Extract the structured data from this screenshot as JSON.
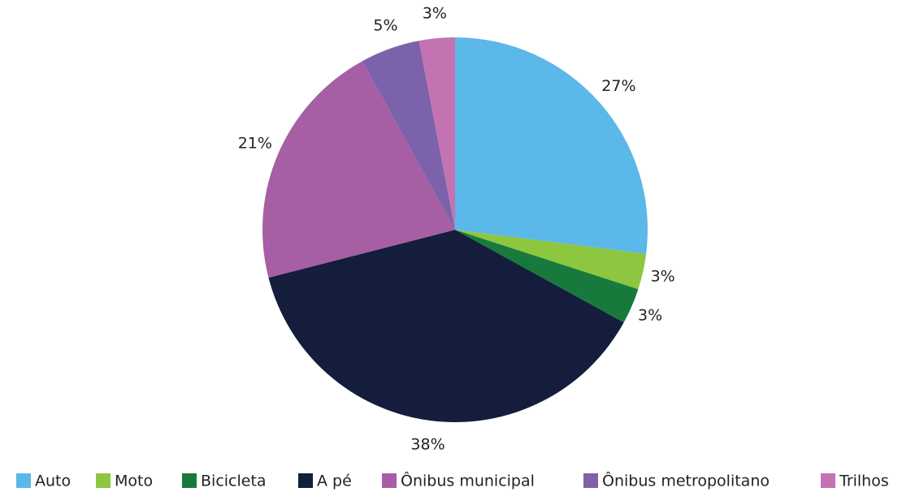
{
  "chart_data": {
    "type": "pie",
    "categories": [
      "Auto",
      "Moto",
      "Bicicleta",
      "A pé",
      "Ônibus municipal",
      "Ônibus metropolitano",
      "Trilhos"
    ],
    "values": [
      27,
      3,
      3,
      38,
      21,
      5,
      3
    ],
    "value_labels": [
      "27%",
      "3%",
      "3%",
      "38%",
      "21%",
      "5%",
      "3%"
    ],
    "colors": [
      "#5bb8e8",
      "#8dc63f",
      "#177a3c",
      "#141e3c",
      "#a65ea5",
      "#7b62aa",
      "#c373b2"
    ],
    "legend": "bottom"
  }
}
